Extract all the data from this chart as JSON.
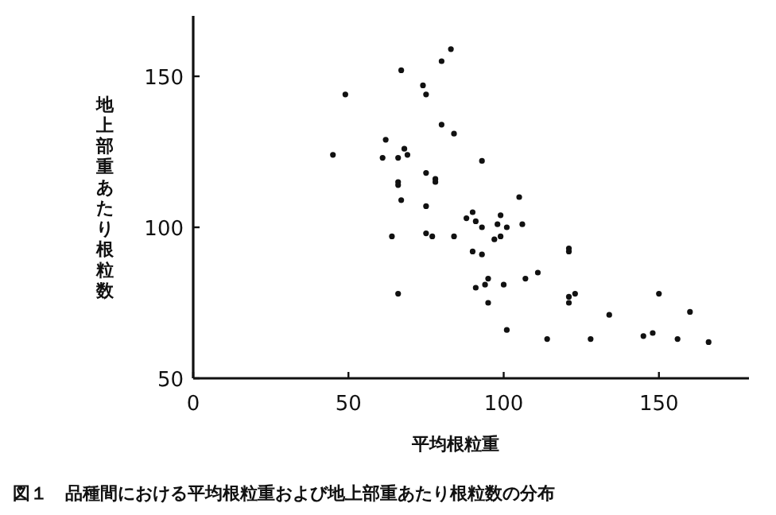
{
  "chart_data": {
    "type": "scatter",
    "xlabel": "平均根粒重",
    "ylabel": "地上部重あたり根粒数",
    "annotations": [
      "図１　品種間における平均根粒重および地上部重あたり根粒数の分布"
    ],
    "xlim": [
      0,
      179
    ],
    "ylim": [
      50,
      170
    ],
    "xticks": [
      0,
      50,
      100,
      150
    ],
    "yticks": [
      50,
      100,
      150
    ],
    "marker": "circle",
    "series": [
      {
        "color": "#111111",
        "x": [
          49,
          45,
          67,
          74,
          75,
          80,
          83,
          80,
          84,
          62,
          61,
          66,
          68,
          69,
          93,
          75,
          66,
          66,
          78,
          78,
          67,
          75,
          105,
          64,
          66,
          75,
          77,
          84,
          88,
          90,
          91,
          93,
          90,
          93,
          98,
          99,
          101,
          97,
          99,
          106,
          91,
          94,
          95,
          95,
          100,
          107,
          111,
          101,
          114,
          121,
          121,
          121,
          121,
          123,
          134,
          128,
          145,
          148,
          150,
          156,
          160,
          166
        ],
        "values": [
          144,
          124,
          152,
          147,
          144,
          155,
          159,
          134,
          131,
          129,
          123,
          123,
          126,
          124,
          122,
          118,
          115,
          114,
          116,
          115,
          109,
          107,
          110,
          97,
          78,
          98,
          97,
          97,
          103,
          105,
          102,
          100,
          92,
          91,
          101,
          104,
          100,
          96,
          97,
          101,
          80,
          81,
          83,
          75,
          81,
          83,
          85,
          66,
          63,
          92,
          93,
          77,
          75,
          78,
          71,
          63,
          64,
          65,
          78,
          63,
          72,
          62
        ]
      }
    ]
  }
}
